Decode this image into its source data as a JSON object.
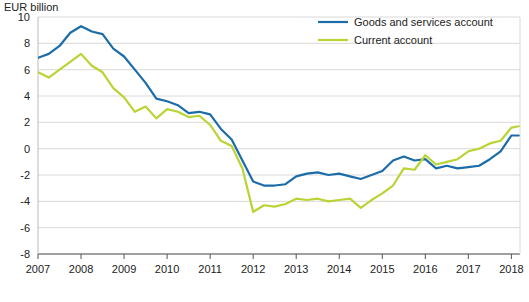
{
  "chart_data": {
    "type": "line",
    "y_label": "EUR billion",
    "x": [
      2007.0,
      2007.25,
      2007.5,
      2007.75,
      2008.0,
      2008.25,
      2008.5,
      2008.75,
      2009.0,
      2009.25,
      2009.5,
      2009.75,
      2010.0,
      2010.25,
      2010.5,
      2010.75,
      2011.0,
      2011.25,
      2011.5,
      2011.75,
      2012.0,
      2012.25,
      2012.5,
      2012.75,
      2013.0,
      2013.25,
      2013.5,
      2013.75,
      2014.0,
      2014.25,
      2014.5,
      2014.75,
      2015.0,
      2015.25,
      2015.5,
      2015.75,
      2016.0,
      2016.25,
      2016.5,
      2016.75,
      2017.0,
      2017.25,
      2017.5,
      2017.75,
      2018.0,
      2018.17
    ],
    "series": [
      {
        "name": "Goods and services account",
        "color": "#1b6ca8",
        "values": [
          6.9,
          7.2,
          7.8,
          8.8,
          9.3,
          8.9,
          8.7,
          7.6,
          7.0,
          6.0,
          5.0,
          3.8,
          3.6,
          3.3,
          2.7,
          2.8,
          2.6,
          1.5,
          0.7,
          -0.9,
          -2.5,
          -2.8,
          -2.8,
          -2.7,
          -2.1,
          -1.9,
          -1.8,
          -2.0,
          -1.9,
          -2.1,
          -2.3,
          -2.0,
          -1.7,
          -0.9,
          -0.6,
          -0.9,
          -0.8,
          -1.5,
          -1.3,
          -1.5,
          -1.4,
          -1.3,
          -0.8,
          -0.2,
          1.0,
          1.0
        ]
      },
      {
        "name": "Current account",
        "color": "#b8d435",
        "values": [
          5.8,
          5.4,
          6.0,
          6.6,
          7.2,
          6.3,
          5.8,
          4.6,
          3.9,
          2.8,
          3.2,
          2.3,
          3.0,
          2.8,
          2.4,
          2.5,
          1.8,
          0.6,
          0.2,
          -1.5,
          -4.8,
          -4.3,
          -4.4,
          -4.2,
          -3.8,
          -3.9,
          -3.8,
          -4.0,
          -3.9,
          -3.8,
          -4.5,
          -3.9,
          -3.4,
          -2.8,
          -1.5,
          -1.6,
          -0.5,
          -1.2,
          -1.0,
          -0.8,
          -0.2,
          0.0,
          0.4,
          0.6,
          1.6,
          1.7
        ]
      }
    ],
    "xlim": [
      2007,
      2018.2
    ],
    "xticks": [
      2007,
      2008,
      2009,
      2010,
      2011,
      2012,
      2013,
      2014,
      2015,
      2016,
      2017,
      2018
    ],
    "ylim": [
      -8,
      10
    ],
    "yticks": [
      -8,
      -6,
      -4,
      -2,
      0,
      2,
      4,
      6,
      8,
      10
    ],
    "grid": true,
    "legend": "upper right"
  }
}
